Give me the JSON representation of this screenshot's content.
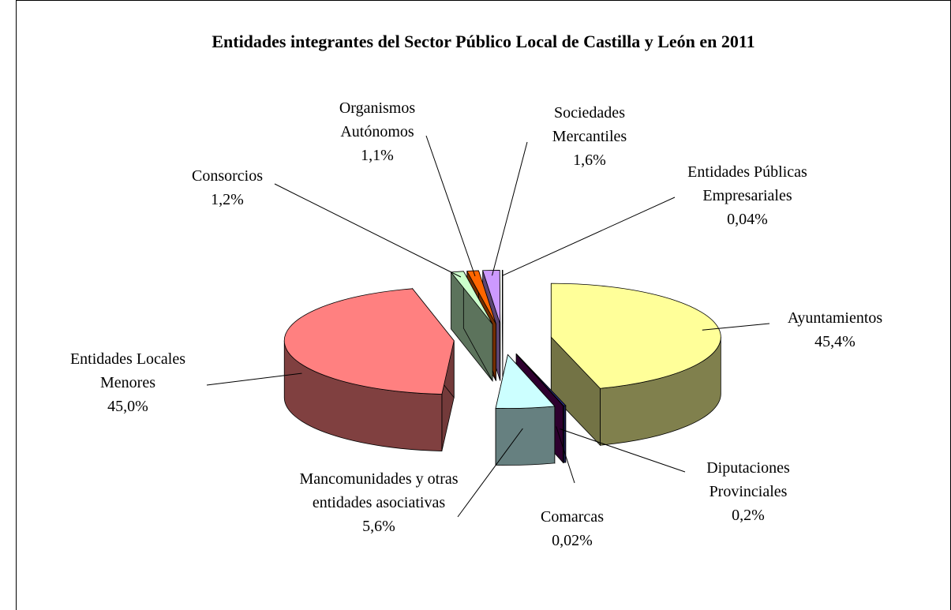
{
  "chart_data": {
    "type": "pie3d",
    "title": "Entidades integrantes del Sector Público Local de Castilla y León en 2011",
    "categories": [
      "Ayuntamientos",
      "Diputaciones Provinciales",
      "Comarcas",
      "Mancomunidades y otras entidades asociativas",
      "Entidades Locales Menores",
      "Consorcios",
      "Organismos Autónomos",
      "Sociedades Mercantiles",
      "Entidades Públicas Empresariales"
    ],
    "values": [
      45.4,
      0.2,
      0.02,
      5.6,
      45.0,
      1.2,
      1.1,
      1.6,
      0.04
    ],
    "value_labels": [
      "45,4%",
      "0,2%",
      "0,02%",
      "5,6%",
      "45,0%",
      "1,2%",
      "1,1%",
      "1,6%",
      "0,04%"
    ],
    "colors": [
      "#ffff99",
      "#333399",
      "#660066",
      "#ccffff",
      "#ff8080",
      "#ccffcc",
      "#ff6600",
      "#cc99ff",
      "#ffffcc"
    ]
  }
}
